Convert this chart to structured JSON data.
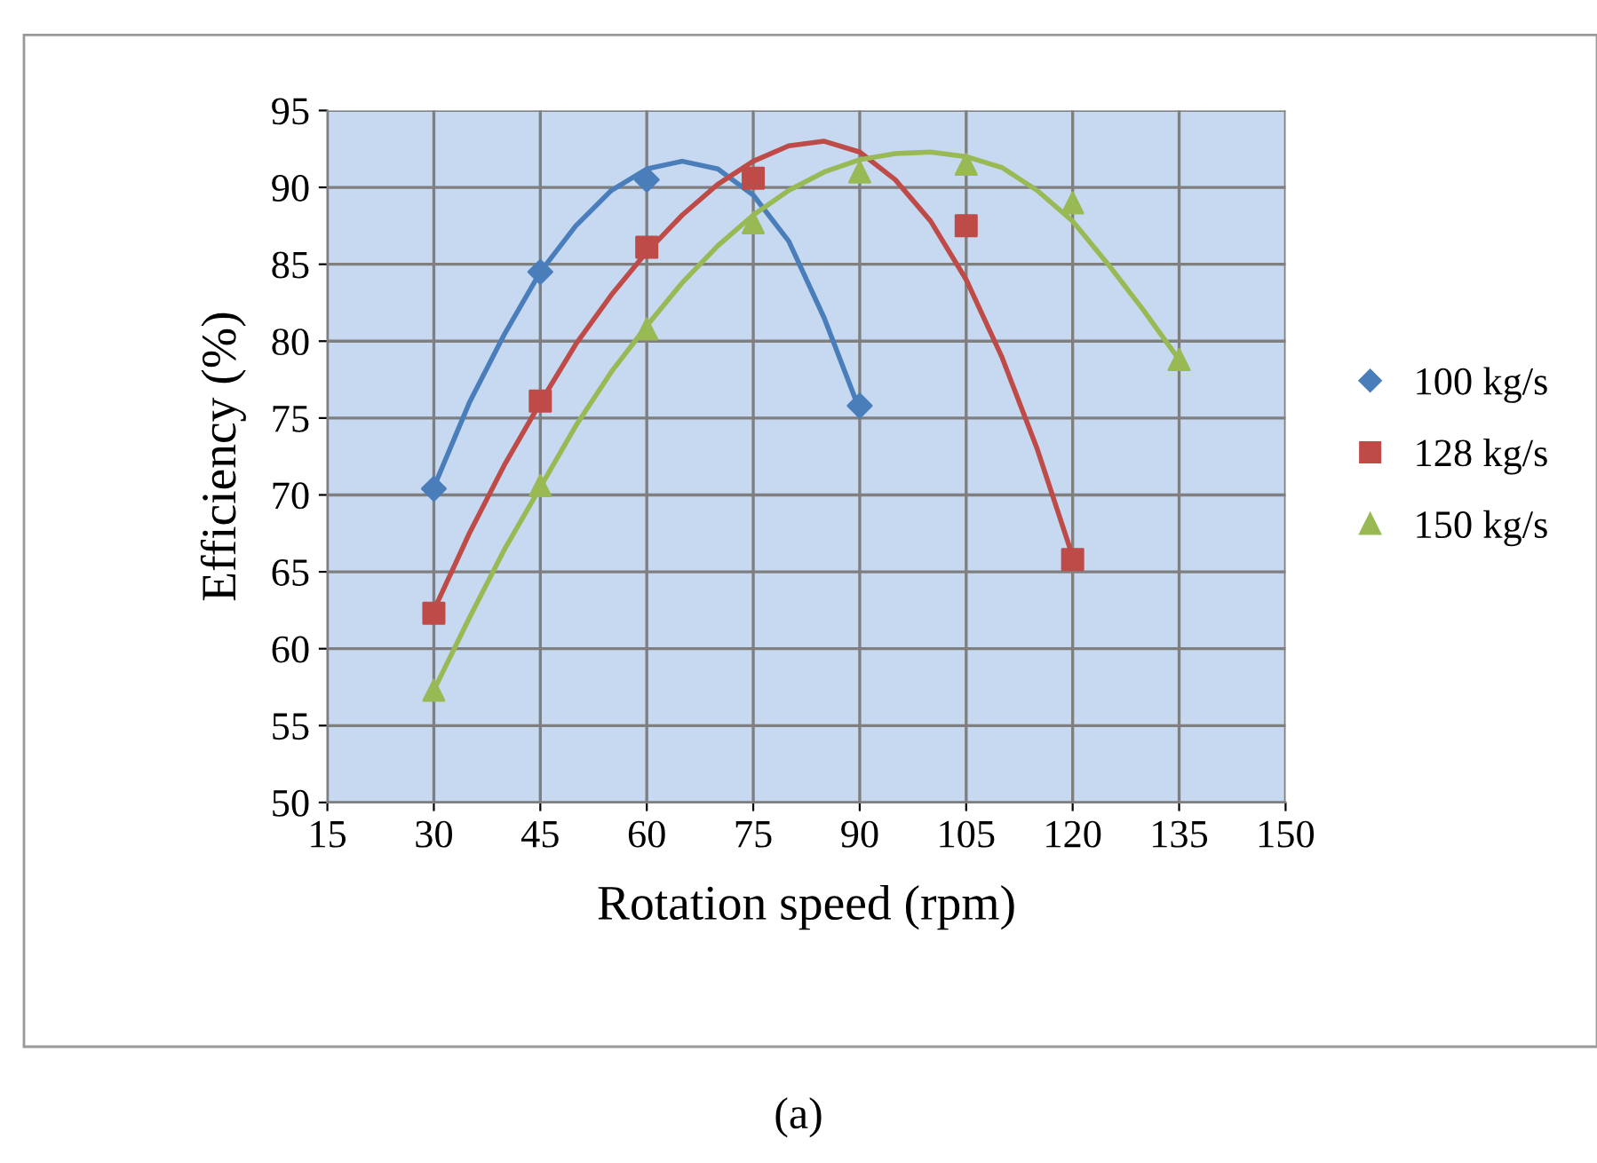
{
  "chart_data": {
    "type": "scatter",
    "xlabel": "Rotation speed (rpm)",
    "ylabel": "Efficiency (%)",
    "annotations": [
      "(a)"
    ],
    "xlim": [
      15,
      150
    ],
    "xticks": [
      15,
      30,
      45,
      60,
      75,
      90,
      105,
      120,
      135,
      150
    ],
    "ylim": [
      50,
      95
    ],
    "yticks": [
      50,
      55,
      60,
      65,
      70,
      75,
      80,
      85,
      90,
      95
    ],
    "grid": true,
    "legend": "right",
    "series": [
      {
        "name": "100 kg/s",
        "color": "#4a7ebb",
        "marker": "diamond",
        "x": [
          30,
          45,
          60,
          90
        ],
        "values": [
          70.4,
          84.5,
          90.5,
          75.8
        ]
      },
      {
        "name": "128 kg/s",
        "color": "#be4b48",
        "marker": "square",
        "x": [
          30,
          45,
          60,
          75,
          105,
          120
        ],
        "values": [
          62.3,
          76.1,
          86.1,
          90.6,
          87.5,
          65.8
        ]
      },
      {
        "name": "150 kg/s",
        "color": "#98b954",
        "marker": "triangle",
        "x": [
          30,
          45,
          60,
          75,
          90,
          105,
          120,
          135
        ],
        "values": [
          57.3,
          70.6,
          80.8,
          87.7,
          91.0,
          91.5,
          89.0,
          78.8
        ]
      },
      {
        "type": "line",
        "color": "#4a7ebb",
        "x": [
          30,
          35,
          40,
          45,
          50,
          55,
          60,
          65,
          70,
          75,
          80,
          85,
          90
        ],
        "values": [
          70.5,
          76,
          80.5,
          84.5,
          87.5,
          89.8,
          91.2,
          91.7,
          91.2,
          89.5,
          86.5,
          81.5,
          75.5
        ]
      },
      {
        "type": "line",
        "color": "#be4b48",
        "x": [
          30,
          35,
          40,
          45,
          50,
          55,
          60,
          65,
          70,
          75,
          80,
          85,
          90,
          95,
          100,
          105,
          110,
          115,
          120
        ],
        "values": [
          62.5,
          67.5,
          72,
          76,
          79.8,
          83,
          85.8,
          88.2,
          90.2,
          91.7,
          92.7,
          93.0,
          92.3,
          90.5,
          87.8,
          84,
          79,
          73,
          66
        ]
      },
      {
        "type": "line",
        "color": "#98b954",
        "x": [
          30,
          35,
          40,
          45,
          50,
          55,
          60,
          65,
          70,
          75,
          80,
          85,
          90,
          95,
          100,
          105,
          110,
          115,
          120,
          125,
          130,
          135
        ],
        "values": [
          57.3,
          62,
          66.5,
          70.5,
          74.5,
          78,
          81,
          83.8,
          86.2,
          88.2,
          89.8,
          91,
          91.8,
          92.2,
          92.3,
          92,
          91.3,
          89.8,
          87.8,
          85,
          82,
          78.8
        ]
      }
    ]
  }
}
